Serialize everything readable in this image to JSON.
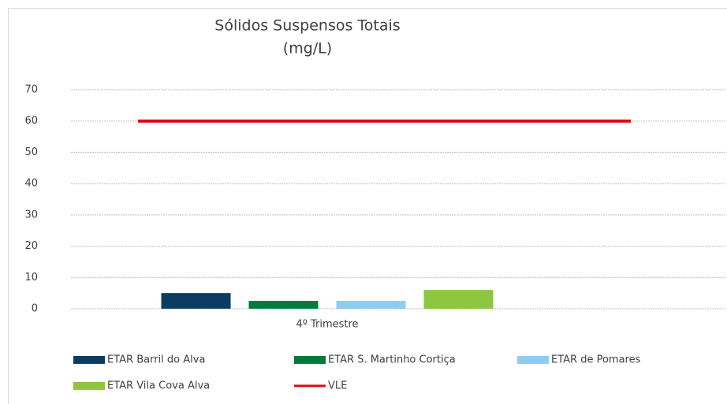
{
  "chart_data": {
    "type": "bar",
    "title": "Sólidos Suspensos Totais",
    "subtitle": "(mg/L)",
    "categories": [
      "4º Trimestre"
    ],
    "series": [
      {
        "name": "ETAR Barril do Alva",
        "color": "#0b3d63",
        "values": [
          5
        ]
      },
      {
        "name": "ETAR S. Martinho Cortiça",
        "color": "#007a3d",
        "values": [
          2.5
        ]
      },
      {
        "name": "ETAR de Pomares",
        "color": "#8ecdf0",
        "values": [
          2.5
        ]
      },
      {
        "name": "ETAR Vila Cova Alva",
        "color": "#8dc63f",
        "values": [
          6
        ]
      },
      {
        "name": "VLE",
        "color": "#e30613",
        "type": "line",
        "values": [
          60
        ]
      }
    ],
    "ylim": [
      0,
      70
    ],
    "yticks": [
      0,
      10,
      20,
      30,
      40,
      50,
      60,
      70
    ],
    "grid": true,
    "legend": "bottom"
  }
}
